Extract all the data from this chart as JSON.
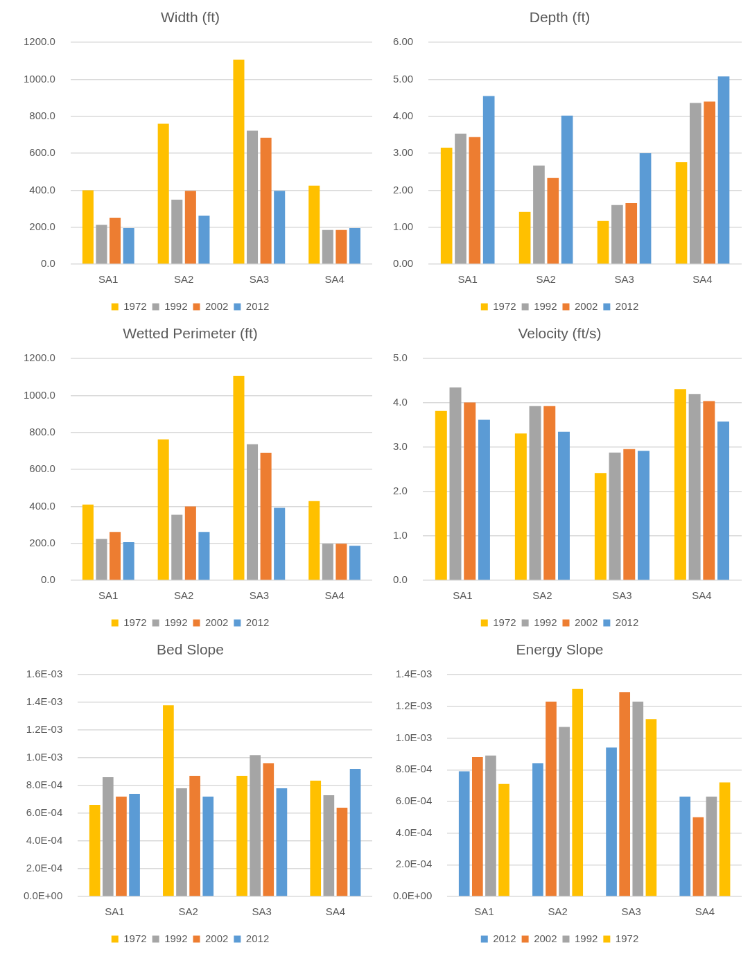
{
  "chart_data": [
    {
      "type": "bar",
      "title": "Width (ft)",
      "categories": [
        "SA1",
        "SA2",
        "SA3",
        "SA4"
      ],
      "series": [
        {
          "name": "1972",
          "color": "#ffc000",
          "values": [
            400,
            760,
            1107,
            425
          ]
        },
        {
          "name": "1992",
          "color": "#a5a5a5",
          "values": [
            213,
            349,
            722,
            185
          ]
        },
        {
          "name": "2002",
          "color": "#ed7d31",
          "values": [
            251,
            397,
            684,
            185
          ]
        },
        {
          "name": "2012",
          "color": "#5b9bd5",
          "values": [
            195,
            263,
            397,
            195
          ]
        }
      ],
      "ylim": [
        0,
        1200
      ],
      "yticks": [
        {
          "value": 0,
          "label": "0.0"
        },
        {
          "value": 200,
          "label": "200.0"
        },
        {
          "value": 400,
          "label": "400.0"
        },
        {
          "value": 600,
          "label": "600.0"
        },
        {
          "value": 800,
          "label": "800.0"
        },
        {
          "value": 1000,
          "label": "1000.0"
        },
        {
          "value": 1200,
          "label": "1200.0"
        }
      ],
      "grid": "y",
      "legend": "bottom"
    },
    {
      "type": "bar",
      "title": "Depth (ft)",
      "categories": [
        "SA1",
        "SA2",
        "SA3",
        "SA4"
      ],
      "series": [
        {
          "name": "1972",
          "color": "#ffc000",
          "values": [
            3.15,
            1.41,
            1.17,
            2.76
          ]
        },
        {
          "name": "1992",
          "color": "#a5a5a5",
          "values": [
            3.53,
            2.67,
            1.6,
            4.36
          ]
        },
        {
          "name": "2002",
          "color": "#ed7d31",
          "values": [
            3.44,
            2.33,
            1.65,
            4.4
          ]
        },
        {
          "name": "2012",
          "color": "#5b9bd5",
          "values": [
            4.55,
            4.02,
            3.0,
            5.08
          ]
        }
      ],
      "ylim": [
        0,
        6
      ],
      "yticks": [
        {
          "value": 0,
          "label": "0.00"
        },
        {
          "value": 1,
          "label": "1.00"
        },
        {
          "value": 2,
          "label": "2.00"
        },
        {
          "value": 3,
          "label": "3.00"
        },
        {
          "value": 4,
          "label": "4.00"
        },
        {
          "value": 5,
          "label": "5.00"
        },
        {
          "value": 6,
          "label": "6.00"
        }
      ],
      "grid": "y",
      "legend": "bottom"
    },
    {
      "type": "bar",
      "title": "Wetted Perimeter (ft)",
      "categories": [
        "SA1",
        "SA2",
        "SA3",
        "SA4"
      ],
      "series": [
        {
          "name": "1972",
          "color": "#ffc000",
          "values": [
            410,
            763,
            1107,
            429
          ]
        },
        {
          "name": "1992",
          "color": "#a5a5a5",
          "values": [
            224,
            355,
            736,
            198
          ]
        },
        {
          "name": "2002",
          "color": "#ed7d31",
          "values": [
            262,
            400,
            690,
            198
          ]
        },
        {
          "name": "2012",
          "color": "#5b9bd5",
          "values": [
            206,
            262,
            392,
            187
          ]
        }
      ],
      "ylim": [
        0,
        1200
      ],
      "yticks": [
        {
          "value": 0,
          "label": "0.0"
        },
        {
          "value": 200,
          "label": "200.0"
        },
        {
          "value": 400,
          "label": "400.0"
        },
        {
          "value": 600,
          "label": "600.0"
        },
        {
          "value": 800,
          "label": "800.0"
        },
        {
          "value": 1000,
          "label": "1000.0"
        },
        {
          "value": 1200,
          "label": "1200.0"
        }
      ],
      "grid": "y",
      "legend": "bottom"
    },
    {
      "type": "bar",
      "title": "Velocity (ft/s)",
      "categories": [
        "SA1",
        "SA2",
        "SA3",
        "SA4"
      ],
      "series": [
        {
          "name": "1972",
          "color": "#ffc000",
          "values": [
            3.82,
            3.31,
            2.42,
            4.31
          ]
        },
        {
          "name": "1992",
          "color": "#a5a5a5",
          "values": [
            4.35,
            3.93,
            2.88,
            4.2
          ]
        },
        {
          "name": "2002",
          "color": "#ed7d31",
          "values": [
            4.01,
            3.93,
            2.96,
            4.04
          ]
        },
        {
          "name": "2012",
          "color": "#5b9bd5",
          "values": [
            3.62,
            3.35,
            2.92,
            3.58
          ]
        }
      ],
      "ylim": [
        0,
        5
      ],
      "yticks": [
        {
          "value": 0,
          "label": "0.0"
        },
        {
          "value": 1,
          "label": "1.0"
        },
        {
          "value": 2,
          "label": "2.0"
        },
        {
          "value": 3,
          "label": "3.0"
        },
        {
          "value": 4,
          "label": "4.0"
        },
        {
          "value": 5,
          "label": "5.0"
        }
      ],
      "grid": "y",
      "legend": "bottom"
    },
    {
      "type": "bar",
      "title": "Bed Slope",
      "categories": [
        "SA1",
        "SA2",
        "SA3",
        "SA4"
      ],
      "series": [
        {
          "name": "1972",
          "color": "#ffc000",
          "values": [
            0.00066,
            0.00138,
            0.00087,
            0.000835
          ]
        },
        {
          "name": "1992",
          "color": "#a5a5a5",
          "values": [
            0.00086,
            0.00078,
            0.00102,
            0.00073
          ]
        },
        {
          "name": "2002",
          "color": "#ed7d31",
          "values": [
            0.00072,
            0.00087,
            0.00096,
            0.00064
          ]
        },
        {
          "name": "2012",
          "color": "#5b9bd5",
          "values": [
            0.00074,
            0.00072,
            0.00078,
            0.00092
          ]
        }
      ],
      "ylim": [
        0,
        0.0016
      ],
      "yticks": [
        {
          "value": 0,
          "label": "0.0E+00"
        },
        {
          "value": 0.0002,
          "label": "2.0E-04"
        },
        {
          "value": 0.0004,
          "label": "4.0E-04"
        },
        {
          "value": 0.0006,
          "label": "6.0E-04"
        },
        {
          "value": 0.0008,
          "label": "8.0E-04"
        },
        {
          "value": 0.001,
          "label": "1.0E-03"
        },
        {
          "value": 0.0012,
          "label": "1.2E-03"
        },
        {
          "value": 0.0014,
          "label": "1.4E-03"
        },
        {
          "value": 0.0016,
          "label": "1.6E-03"
        }
      ],
      "grid": "y",
      "legend": "bottom"
    },
    {
      "type": "bar",
      "title": "Energy Slope",
      "categories": [
        "SA1",
        "SA2",
        "SA3",
        "SA4"
      ],
      "series": [
        {
          "name": "2012",
          "color": "#5b9bd5",
          "values": [
            0.00079,
            0.00084,
            0.00094,
            0.00063
          ]
        },
        {
          "name": "2002",
          "color": "#ed7d31",
          "values": [
            0.00088,
            0.00123,
            0.00129,
            0.0005
          ]
        },
        {
          "name": "1992",
          "color": "#a5a5a5",
          "values": [
            0.00089,
            0.00107,
            0.00123,
            0.00063
          ]
        },
        {
          "name": "1972",
          "color": "#ffc000",
          "values": [
            0.00071,
            0.00131,
            0.00112,
            0.00072
          ]
        }
      ],
      "ylim": [
        0,
        0.0014
      ],
      "yticks": [
        {
          "value": 0,
          "label": "0.0E+00"
        },
        {
          "value": 0.0002,
          "label": "2.0E-04"
        },
        {
          "value": 0.0004,
          "label": "4.0E-04"
        },
        {
          "value": 0.0006,
          "label": "6.0E-04"
        },
        {
          "value": 0.0008,
          "label": "8.0E-04"
        },
        {
          "value": 0.001,
          "label": "1.0E-03"
        },
        {
          "value": 0.0012,
          "label": "1.2E-03"
        },
        {
          "value": 0.0014,
          "label": "1.4E-03"
        }
      ],
      "grid": "y",
      "legend": "bottom"
    }
  ]
}
